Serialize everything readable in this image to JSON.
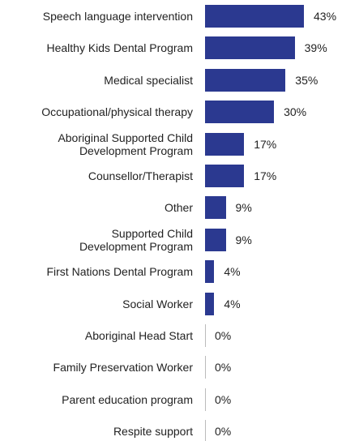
{
  "chart_data": {
    "type": "hbar",
    "categories": [
      "Speech language intervention",
      "Healthy Kids Dental Program",
      "Medical specialist",
      "Occupational/physical therapy",
      "Aboriginal Supported Child\nDevelopment Program",
      "Counsellor/Therapist",
      "Other",
      "Supported Child\nDevelopment Program",
      "First Nations Dental Program",
      "Social Worker",
      "Aboriginal Head Start",
      "Family Preservation Worker",
      "Parent education program",
      "Respite support"
    ],
    "values": [
      43,
      39,
      35,
      30,
      17,
      17,
      9,
      9,
      4,
      4,
      0,
      0,
      0,
      0
    ],
    "value_labels": [
      "43%",
      "39%",
      "35%",
      "30%",
      "17%",
      "17%",
      "9%",
      "9%",
      "4%",
      "4%",
      "0%",
      "0%",
      "0%",
      "0%"
    ],
    "color": "#2b3990"
  }
}
